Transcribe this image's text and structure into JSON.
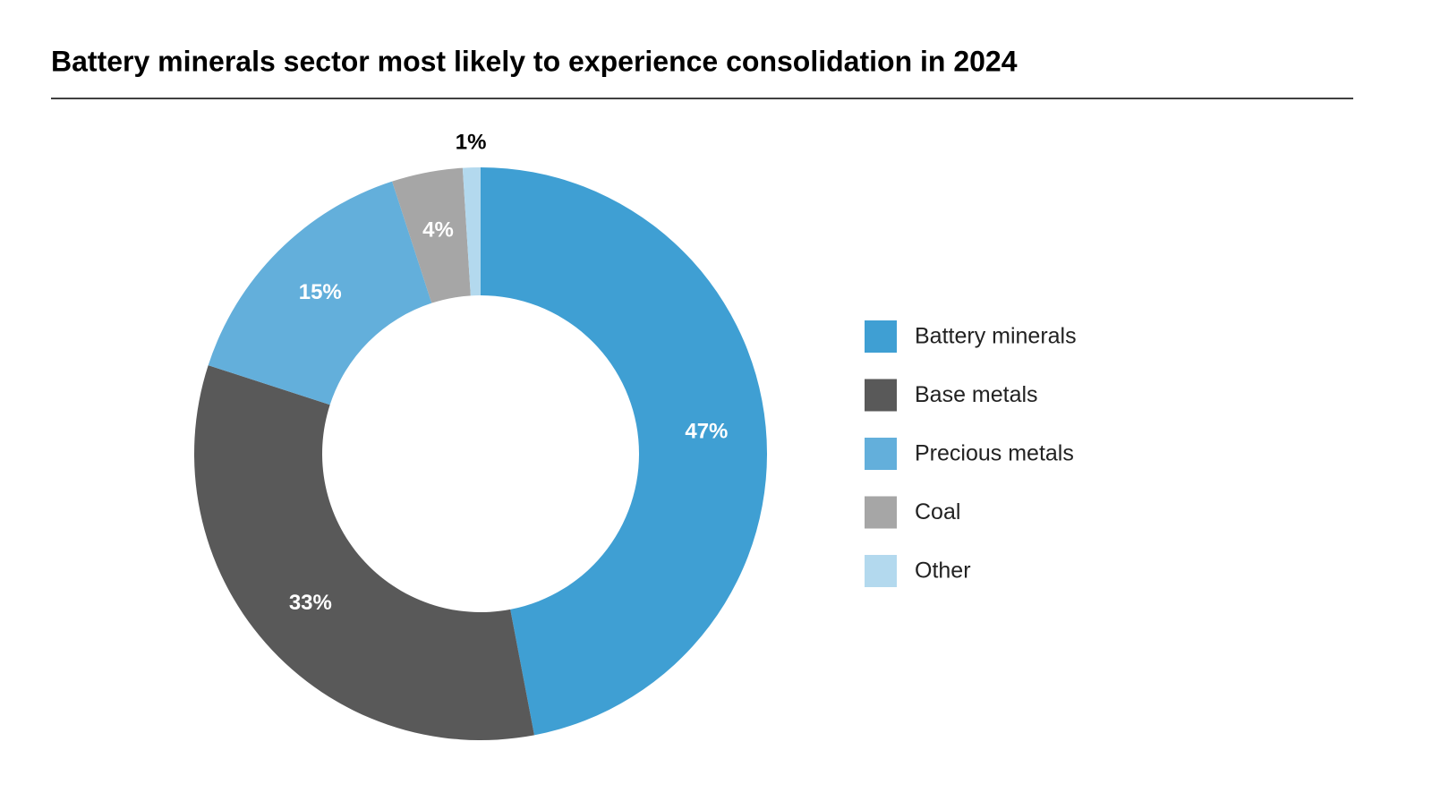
{
  "chart_data": {
    "type": "donut",
    "title": "Battery minerals sector most likely to experience consolidation in 2024",
    "categories": [
      "Battery minerals",
      "Base metals",
      "Precious metals",
      "Coal",
      "Other"
    ],
    "values": [
      47,
      33,
      15,
      4,
      1
    ],
    "value_labels": [
      "47%",
      "33%",
      "15%",
      "4%",
      "1%"
    ],
    "colors": [
      "#3f9fd3",
      "#595959",
      "#63afdb",
      "#a6a6a6",
      "#b3d9ee"
    ],
    "legend": "right"
  }
}
